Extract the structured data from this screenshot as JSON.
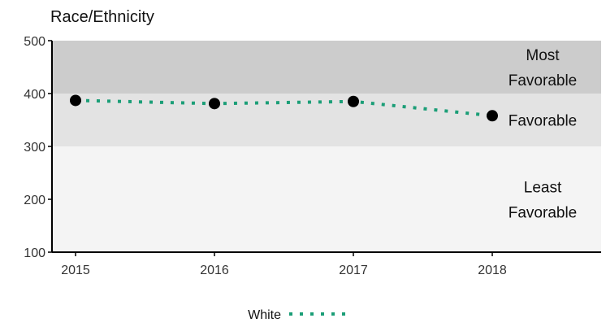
{
  "chart_data": {
    "type": "line",
    "title": "Race/Ethnicity",
    "xlabel": "",
    "ylabel": "",
    "x": [
      "2015",
      "2016",
      "2017",
      "2018"
    ],
    "ylim": [
      100,
      500
    ],
    "yticks": [
      100,
      200,
      300,
      400,
      500
    ],
    "series": [
      {
        "name": "White",
        "values": [
          387,
          381,
          385,
          358
        ],
        "color": "#1b9e77",
        "line_style": "dotted"
      }
    ],
    "bands": [
      {
        "from": 400,
        "to": 500,
        "label_lines": [
          "Most",
          "Favorable"
        ],
        "color": "#cccccc"
      },
      {
        "from": 300,
        "to": 400,
        "label_lines": [
          "Favorable"
        ],
        "color": "#e3e3e3"
      },
      {
        "from": 100,
        "to": 300,
        "label_lines": [
          "Least",
          "Favorable"
        ],
        "color": "#f4f4f4"
      }
    ],
    "legend_position": "bottom",
    "grid": false
  }
}
